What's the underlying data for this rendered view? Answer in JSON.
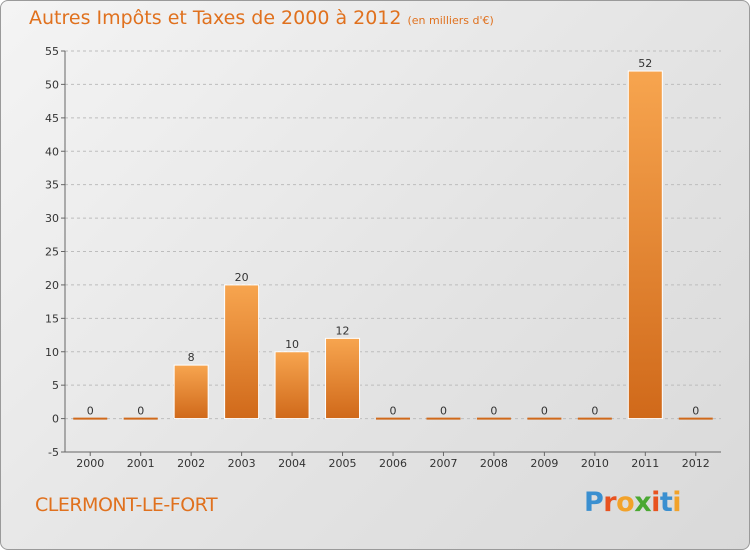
{
  "title": "Autres Impôts et Taxes de 2000 à 2012",
  "title_unit": "(en milliers d'€)",
  "commune": "CLERMONT-LE-FORT",
  "logo": {
    "text": "Proxiti",
    "letters": [
      {
        "ch": "P",
        "color": "#3a8fd0"
      },
      {
        "ch": "r",
        "color": "#e8521f"
      },
      {
        "ch": "o",
        "color": "#f2a22a"
      },
      {
        "ch": "x",
        "color": "#4aa832"
      },
      {
        "ch": "i",
        "color": "#e8521f"
      },
      {
        "ch": "t",
        "color": "#3a8fd0"
      },
      {
        "ch": "i",
        "color": "#f2a22a"
      }
    ]
  },
  "colors": {
    "bar_top": "#f7a54f",
    "bar_bottom": "#d0691a",
    "text": "#e0711e",
    "grid": "#bdbdbd"
  },
  "chart_data": {
    "type": "bar",
    "title": "Autres Impôts et Taxes de 2000 à 2012",
    "subtitle": "(en milliers d'€)",
    "categories": [
      "2000",
      "2001",
      "2002",
      "2003",
      "2004",
      "2005",
      "2006",
      "2007",
      "2008",
      "2009",
      "2010",
      "2011",
      "2012"
    ],
    "values": [
      0,
      0,
      8,
      20,
      10,
      12,
      0,
      0,
      0,
      0,
      0,
      52,
      0
    ],
    "data_labels": [
      "0",
      "0",
      "8",
      "20",
      "10",
      "12",
      "0",
      "0",
      "0",
      "0",
      "0",
      "52",
      "0"
    ],
    "ylim": [
      -5,
      55
    ],
    "yticks": [
      -5,
      0,
      5,
      10,
      15,
      20,
      25,
      30,
      35,
      40,
      45,
      50,
      55
    ],
    "grid": "horizontal dashed",
    "xlabel": "",
    "ylabel": ""
  }
}
